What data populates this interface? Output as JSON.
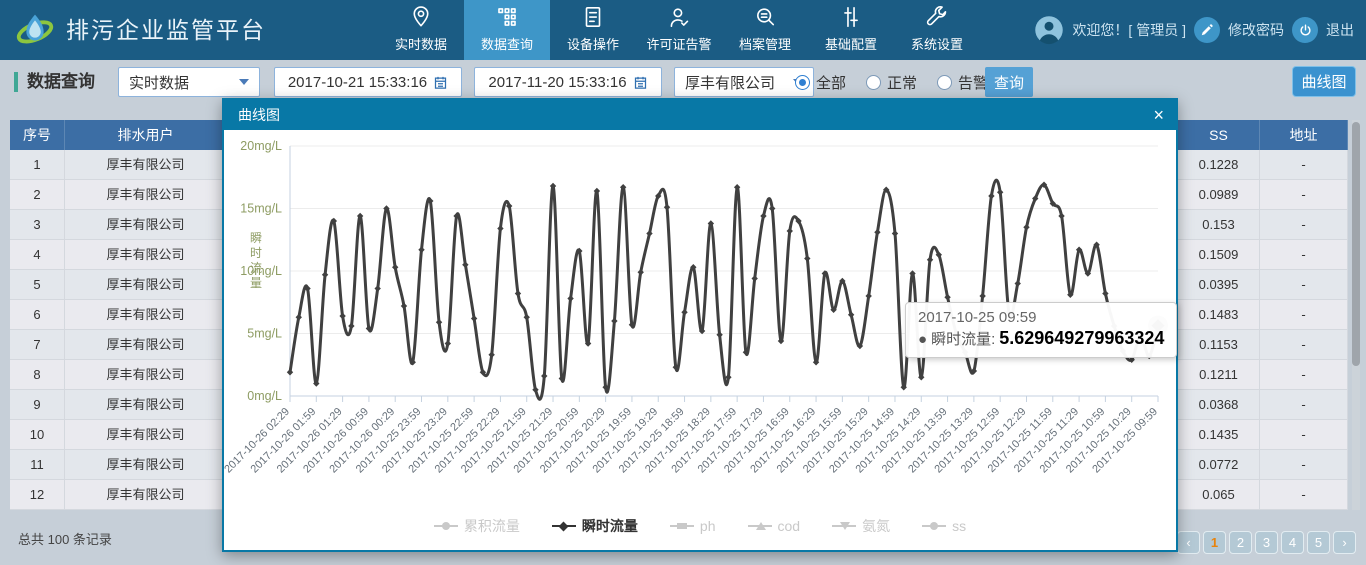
{
  "app": {
    "title": "排污企业监管平台",
    "welcome_text": "欢迎您！[ 管理员 ]",
    "change_password_label": "修改密码",
    "logout_label": "退出"
  },
  "nav": {
    "items": [
      {
        "label": "实时数据",
        "icon": "location-pin-icon",
        "active": false
      },
      {
        "label": "数据查询",
        "icon": "data-grid-icon",
        "active": true
      },
      {
        "label": "设备操作",
        "icon": "device-doc-icon",
        "active": false
      },
      {
        "label": "许可证告警",
        "icon": "license-alert-icon",
        "active": false
      },
      {
        "label": "档案管理",
        "icon": "archive-search-icon",
        "active": false
      },
      {
        "label": "基础配置",
        "icon": "config-sliders-icon",
        "active": false
      },
      {
        "label": "系统设置",
        "icon": "settings-wrench-icon",
        "active": false
      }
    ]
  },
  "toolbar": {
    "section_title": "数据查询",
    "data_type_value": "实时数据",
    "date_from": "2017-10-21 15:33:16",
    "date_to": "2017-11-20 15:33:16",
    "company_value": "厚丰有限公司",
    "status_options": [
      {
        "label": "全部",
        "checked": true
      },
      {
        "label": "正常",
        "checked": false
      },
      {
        "label": "告警",
        "checked": false
      }
    ],
    "query_button_label": "查询",
    "curve_button_label": "曲线图"
  },
  "table": {
    "left_headers": [
      "序号",
      "排水用户"
    ],
    "right_headers": [
      "SS",
      "地址"
    ],
    "rows": [
      {
        "no": "1",
        "user": "厚丰有限公司",
        "ss": "0.1228",
        "addr": "-"
      },
      {
        "no": "2",
        "user": "厚丰有限公司",
        "ss": "0.0989",
        "addr": "-"
      },
      {
        "no": "3",
        "user": "厚丰有限公司",
        "ss": "0.153",
        "addr": "-"
      },
      {
        "no": "4",
        "user": "厚丰有限公司",
        "ss": "0.1509",
        "addr": "-"
      },
      {
        "no": "5",
        "user": "厚丰有限公司",
        "ss": "0.0395",
        "addr": "-"
      },
      {
        "no": "6",
        "user": "厚丰有限公司",
        "ss": "0.1483",
        "addr": "-"
      },
      {
        "no": "7",
        "user": "厚丰有限公司",
        "ss": "0.1153",
        "addr": "-"
      },
      {
        "no": "8",
        "user": "厚丰有限公司",
        "ss": "0.1211",
        "addr": "-"
      },
      {
        "no": "9",
        "user": "厚丰有限公司",
        "ss": "0.0368",
        "addr": "-"
      },
      {
        "no": "10",
        "user": "厚丰有限公司",
        "ss": "0.1435",
        "addr": "-"
      },
      {
        "no": "11",
        "user": "厚丰有限公司",
        "ss": "0.0772",
        "addr": "-"
      },
      {
        "no": "12",
        "user": "厚丰有限公司",
        "ss": "0.065",
        "addr": "-"
      }
    ]
  },
  "footer": {
    "total_text": "总共 100 条记录",
    "pagination": [
      {
        "label": "‹",
        "active": false
      },
      {
        "label": "1",
        "active": true
      },
      {
        "label": "2",
        "active": false
      },
      {
        "label": "3",
        "active": false
      },
      {
        "label": "4",
        "active": false
      },
      {
        "label": "5",
        "active": false
      },
      {
        "label": "›",
        "active": false
      }
    ]
  },
  "modal": {
    "title": "曲线图",
    "close_label": "×",
    "tooltip": {
      "timestamp": "2017-10-25 09:59",
      "bullet": "●",
      "series_label": "瞬时流量:",
      "value": "5.629649279963324"
    }
  },
  "colors": {
    "topbar": "#1b5c84",
    "nav_active": "#3e96c8",
    "modal_header": "#0878a6",
    "accent_teal": "#3fa795",
    "table_header": "#3c6ea5",
    "series_line": "#404040",
    "axis_label_green": "#8e9c63",
    "active_page_orange": "#e8830c"
  },
  "chart_data": {
    "type": "line",
    "title": "曲线图",
    "ylabel": "瞬时流量",
    "y_unit": "mg/L",
    "ylim": [
      0,
      20
    ],
    "y_ticks": [
      "0mg/L",
      "5mg/L",
      "10mg/L",
      "15mg/L",
      "20mg/L"
    ],
    "x_label_every": 3,
    "x_labels": [
      "2017-10-26 02:29",
      "2017-10-26 01:59",
      "2017-10-26 01:29",
      "2017-10-26 00:59",
      "2017-10-26 00:29",
      "2017-10-25 23:59",
      "2017-10-25 23:29",
      "2017-10-25 22:59",
      "2017-10-25 22:29",
      "2017-10-25 21:59",
      "2017-10-25 21:29",
      "2017-10-25 20:59",
      "2017-10-25 20:29",
      "2017-10-25 19:59",
      "2017-10-25 19:29",
      "2017-10-25 18:59",
      "2017-10-25 18:29",
      "2017-10-25 17:59",
      "2017-10-25 17:29",
      "2017-10-25 16:59",
      "2017-10-25 16:29",
      "2017-10-25 15:59",
      "2017-10-25 15:29",
      "2017-10-25 14:59",
      "2017-10-25 14:29",
      "2017-10-25 13:59",
      "2017-10-25 13:29",
      "2017-10-25 12:59",
      "2017-10-25 12:29",
      "2017-10-25 11:59",
      "2017-10-25 11:29",
      "2017-10-25 10:59",
      "2017-10-25 10:29",
      "2017-10-25 09:59"
    ],
    "grid": true,
    "legend_position": "bottom",
    "legend": [
      {
        "label": "累积流量",
        "marker": "circle",
        "active": false
      },
      {
        "label": "瞬时流量",
        "marker": "diamond",
        "active": true
      },
      {
        "label": "ph",
        "marker": "rect",
        "active": false
      },
      {
        "label": "cod",
        "marker": "triangle",
        "active": false
      },
      {
        "label": "氨氮",
        "marker": "triangle-down",
        "active": false
      },
      {
        "label": "ss",
        "marker": "circle",
        "active": false
      }
    ],
    "series": [
      {
        "name": "瞬时流量",
        "values": [
          1.9,
          6.3,
          8.6,
          1.0,
          9.7,
          14.0,
          6.4,
          5.6,
          14.4,
          5.4,
          8.6,
          15.0,
          10.3,
          7.2,
          2.7,
          11.7,
          15.6,
          5.9,
          4.2,
          14.4,
          10.5,
          6.2,
          1.9,
          3.3,
          13.4,
          15.2,
          8.2,
          6.3,
          0.5,
          1.6,
          16.8,
          1.4,
          7.8,
          11.6,
          4.2,
          16.4,
          0.7,
          6.0,
          16.7,
          5.7,
          9.9,
          13.0,
          16.0,
          15.1,
          2.3,
          6.7,
          10.3,
          5.2,
          13.8,
          4.9,
          1.5,
          16.7,
          3.5,
          9.4,
          14.4,
          15.0,
          4.4,
          13.2,
          14.0,
          11.0,
          2.7,
          9.8,
          6.9,
          9.2,
          6.5,
          4.0,
          8.0,
          13.1,
          16.5,
          13.0,
          0.7,
          9.8,
          1.5,
          10.9,
          11.3,
          7.9,
          5.0,
          3.5,
          2.0,
          8.0,
          16.0,
          16.3,
          6.7,
          9.0,
          13.5,
          15.8,
          16.9,
          15.4,
          14.4,
          8.1,
          11.7,
          9.8,
          12.1,
          8.2,
          5.6,
          3.6,
          2.9,
          4.8,
          3.2,
          5.629649279963324
        ]
      }
    ],
    "highlight_point": {
      "x_label": "2017-10-25 09:59",
      "value": 5.629649279963324
    }
  }
}
